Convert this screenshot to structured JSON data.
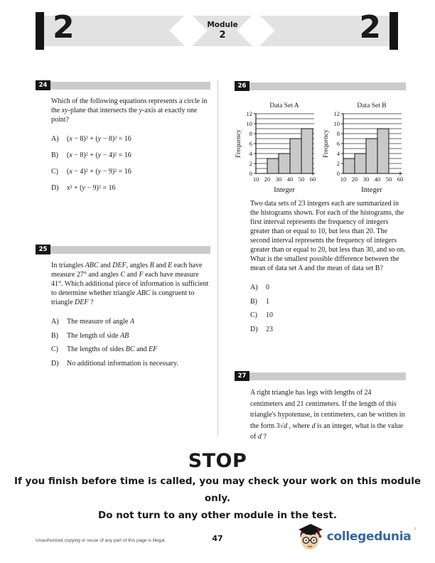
{
  "header": {
    "left_number": "2",
    "right_number": "2",
    "module_label": "Module",
    "module_number": "2"
  },
  "questions": {
    "q24": {
      "number": "24",
      "prompt": "Which of the following equations represents a circle in the *xy*-plane that intersects the *y*-axis at exactly one point?",
      "choices": [
        {
          "letter": "A)",
          "text": "(*x* − 8)² + (*y* − 8)² = 16"
        },
        {
          "letter": "B)",
          "text": "(*x* − 8)² + (*y* − 4)² = 16"
        },
        {
          "letter": "C)",
          "text": "(*x* − 4)² + (*y* − 9)² = 16"
        },
        {
          "letter": "D)",
          "text": "*x*² + (*y* − 9)² = 16"
        }
      ]
    },
    "q25": {
      "number": "25",
      "prompt": "In triangles *ABC* and *DEF*, angles *B* and *E* each have measure 27° and angles *C* and *F* each have measure 41°. Which additional piece of information is sufficient to determine whether triangle *ABC* is congruent to triangle *DEF* ?",
      "choices": [
        {
          "letter": "A)",
          "text": "The measure of angle *A*"
        },
        {
          "letter": "B)",
          "text": "The length of side *AB*"
        },
        {
          "letter": "C)",
          "text": "The lengths of sides *BC* and *EF*"
        },
        {
          "letter": "D)",
          "text": "No additional information is necessary."
        }
      ]
    },
    "q26": {
      "number": "26",
      "prompt": "Two data sets of 23 integers each are summarized in the histograms shown. For each of the histograms, the first interval represents the frequency of integers greater than or equal to 10, but less than 20. The second interval represents the frequency of integers greater than or equal to 20, but less than 30, and so on. What is the smallest possible difference between the mean of data set A and the mean of data set B?",
      "choices": [
        {
          "letter": "A)",
          "text": "0"
        },
        {
          "letter": "B)",
          "text": "1"
        },
        {
          "letter": "C)",
          "text": "10"
        },
        {
          "letter": "D)",
          "text": "23"
        }
      ]
    },
    "q27": {
      "number": "27",
      "prompt": "A right triangle has legs with lengths of 24 centimeters and 21 centimeters. If the length of this triangle's hypotenuse, in centimeters, can be written in the form 3√*d* , where *d* is an integer, what is the value of *d* ?"
    }
  },
  "chart_data": [
    {
      "type": "bar",
      "title": "Data Set A",
      "xlabel": "Integer",
      "ylabel": "Frequency",
      "categories": [
        "10-20",
        "20-30",
        "30-40",
        "40-50",
        "50-60"
      ],
      "values": [
        0,
        3,
        4,
        7,
        9
      ],
      "x_ticks": [
        10,
        20,
        30,
        40,
        50,
        60
      ],
      "y_ticks": [
        0,
        2,
        4,
        6,
        8,
        10,
        12
      ],
      "ylim": [
        0,
        12
      ],
      "grid": true,
      "bar_fill": "#c9c9c9"
    },
    {
      "type": "bar",
      "title": "Data Set B",
      "xlabel": "Integer",
      "ylabel": "Frequency",
      "categories": [
        "10-20",
        "20-30",
        "30-40",
        "40-50",
        "50-60"
      ],
      "values": [
        3,
        4,
        7,
        9,
        0
      ],
      "x_ticks": [
        10,
        20,
        30,
        40,
        50,
        60
      ],
      "y_ticks": [
        0,
        2,
        4,
        6,
        8,
        10,
        12
      ],
      "ylim": [
        0,
        12
      ],
      "grid": true,
      "bar_fill": "#c9c9c9"
    }
  ],
  "stop": {
    "title": "STOP",
    "line1": "If you finish before time is called, you may check your work on this module only.",
    "line2": "Do not turn to any other module in the test."
  },
  "footer": {
    "legal": "Unauthorized copying or reuse of any part of this page is illegal.",
    "page_number": "47",
    "brand": "collegedunia",
    "brand_mark": "®"
  },
  "colors": {
    "band_gray": "#e2e2e2",
    "badge_black": "#161616",
    "bar_gray": "#cbcbcb",
    "histogram_fill": "#c9c9c9",
    "brand_blue": "#35679e"
  }
}
